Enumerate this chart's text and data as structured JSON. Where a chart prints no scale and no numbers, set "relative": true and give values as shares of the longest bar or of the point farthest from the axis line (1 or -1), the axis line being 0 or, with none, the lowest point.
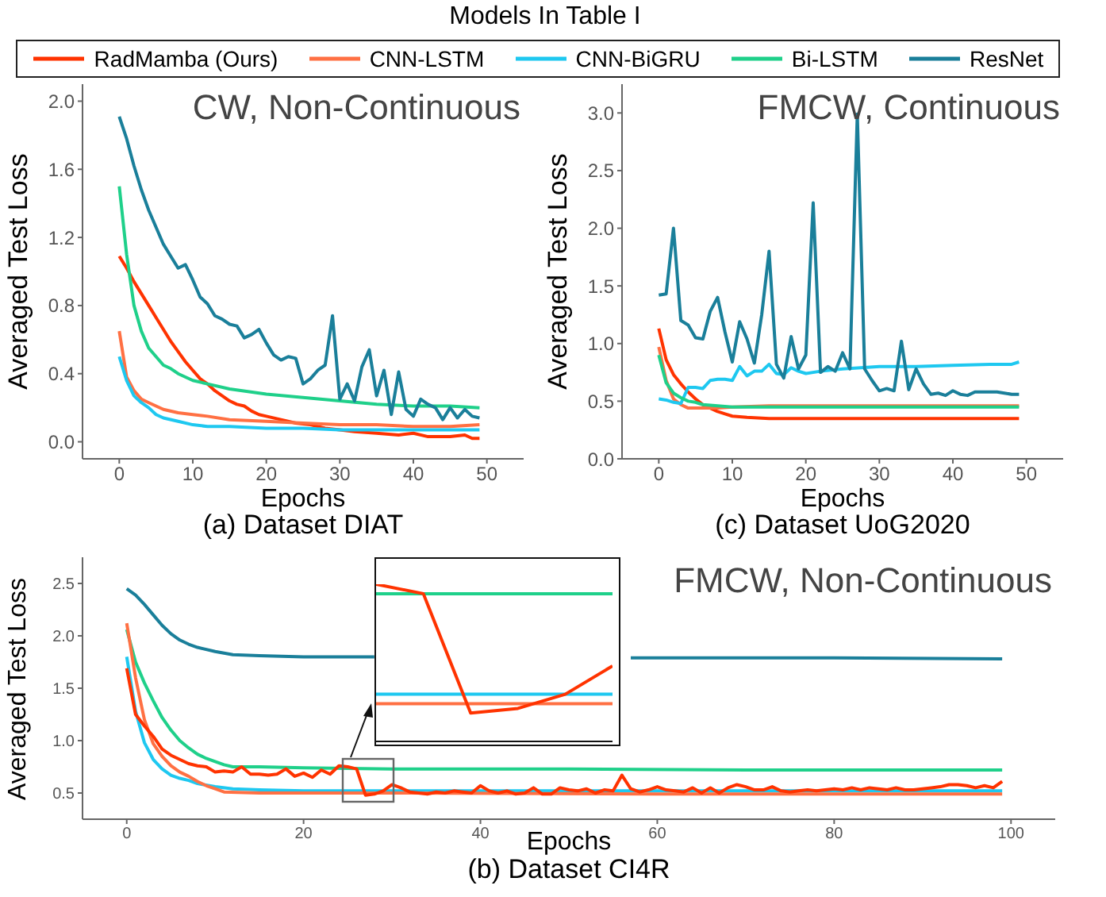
{
  "chart_data": [
    {
      "type": "line",
      "title": "(a) Dataset DIAT",
      "xlabel": "Epochs",
      "ylabel": "Averaged Test Loss",
      "legend_title": "Models In Table I",
      "legend": "top",
      "annotations": [
        "CW, Non-Continuous"
      ],
      "xlim": [
        -5,
        55
      ],
      "xticks": [
        0,
        10,
        20,
        30,
        40,
        50
      ],
      "ylim": [
        -0.1,
        2.1
      ],
      "yticks": [
        {
          "value": 0,
          "label": "0.0"
        },
        0.4,
        0.8,
        1.2,
        1.6,
        {
          "value": 2,
          "label": "2.0"
        }
      ],
      "series": [
        {
          "name": "RadMamba (Ours)",
          "color": "#ff3300",
          "x": [
            0,
            1,
            2,
            3,
            4,
            5,
            6,
            7,
            8,
            9,
            10,
            11,
            12,
            13,
            14,
            15,
            16,
            17,
            18,
            19,
            20,
            22,
            24,
            26,
            28,
            30,
            32,
            35,
            38,
            40,
            42,
            45,
            47,
            48,
            49
          ],
          "values": [
            1.09,
            1.02,
            0.94,
            0.87,
            0.8,
            0.73,
            0.66,
            0.59,
            0.53,
            0.47,
            0.42,
            0.37,
            0.34,
            0.3,
            0.27,
            0.24,
            0.22,
            0.21,
            0.18,
            0.16,
            0.15,
            0.13,
            0.11,
            0.1,
            0.08,
            0.07,
            0.06,
            0.05,
            0.04,
            0.05,
            0.03,
            0.03,
            0.04,
            0.02,
            0.02
          ]
        },
        {
          "name": "CNN-LSTM",
          "color": "#ff7043",
          "x": [
            0,
            1,
            2,
            3,
            4,
            5,
            6,
            8,
            10,
            12,
            15,
            20,
            25,
            30,
            35,
            40,
            45,
            49
          ],
          "values": [
            0.65,
            0.38,
            0.3,
            0.25,
            0.23,
            0.21,
            0.19,
            0.17,
            0.16,
            0.15,
            0.13,
            0.12,
            0.11,
            0.1,
            0.1,
            0.09,
            0.09,
            0.1
          ]
        },
        {
          "name": "CNN-BiGRU",
          "color": "#1ec8f0",
          "x": [
            0,
            1,
            2,
            3,
            4,
            5,
            6,
            8,
            10,
            12,
            15,
            20,
            25,
            30,
            35,
            40,
            45,
            49
          ],
          "values": [
            0.5,
            0.36,
            0.27,
            0.23,
            0.2,
            0.16,
            0.14,
            0.12,
            0.1,
            0.09,
            0.09,
            0.08,
            0.08,
            0.07,
            0.07,
            0.07,
            0.07,
            0.07
          ]
        },
        {
          "name": "Bi-LSTM",
          "color": "#1fd08a",
          "x": [
            0,
            1,
            2,
            3,
            4,
            5,
            6,
            7,
            8,
            9,
            10,
            12,
            15,
            20,
            25,
            30,
            35,
            40,
            45,
            49
          ],
          "values": [
            1.5,
            1.1,
            0.8,
            0.65,
            0.55,
            0.5,
            0.45,
            0.43,
            0.4,
            0.38,
            0.36,
            0.34,
            0.31,
            0.28,
            0.26,
            0.24,
            0.22,
            0.21,
            0.21,
            0.2
          ]
        },
        {
          "name": "ResNet",
          "color": "#1a7f9a",
          "x": [
            0,
            1,
            2,
            3,
            4,
            5,
            6,
            7,
            8,
            9,
            10,
            11,
            12,
            13,
            14,
            15,
            16,
            17,
            18,
            19,
            20,
            21,
            22,
            23,
            24,
            25,
            26,
            27,
            28,
            29,
            30,
            31,
            32,
            33,
            34,
            35,
            36,
            37,
            38,
            39,
            40,
            41,
            42,
            43,
            44,
            45,
            46,
            47,
            48,
            49
          ],
          "values": [
            1.91,
            1.78,
            1.62,
            1.48,
            1.36,
            1.26,
            1.16,
            1.09,
            1.02,
            1.04,
            0.95,
            0.85,
            0.81,
            0.74,
            0.72,
            0.69,
            0.68,
            0.61,
            0.63,
            0.66,
            0.58,
            0.51,
            0.48,
            0.5,
            0.49,
            0.34,
            0.37,
            0.42,
            0.45,
            0.74,
            0.25,
            0.34,
            0.24,
            0.44,
            0.54,
            0.27,
            0.42,
            0.16,
            0.41,
            0.19,
            0.15,
            0.25,
            0.22,
            0.2,
            0.13,
            0.2,
            0.14,
            0.19,
            0.15,
            0.14
          ]
        }
      ]
    },
    {
      "type": "line",
      "title": "(c) Dataset UoG2020",
      "xlabel": "Epochs",
      "ylabel": "Averaged Test Loss",
      "annotations": [
        "FMCW, Continuous"
      ],
      "xlim": [
        -5,
        55
      ],
      "xticks": [
        0,
        10,
        20,
        30,
        40,
        50
      ],
      "ylim": [
        0,
        3.25
      ],
      "yticks": [
        {
          "value": 0,
          "label": "0.0"
        },
        0.5,
        {
          "value": 1,
          "label": "1.0"
        },
        1.5,
        {
          "value": 2,
          "label": "2.0"
        },
        2.5,
        {
          "value": 3,
          "label": "3.0"
        }
      ],
      "series": [
        {
          "color": "#ff3300",
          "x": [
            0,
            1,
            2,
            3,
            4,
            5,
            6,
            7,
            8,
            9,
            10,
            12,
            15,
            20,
            30,
            40,
            49
          ],
          "values": [
            1.13,
            0.86,
            0.73,
            0.65,
            0.58,
            0.52,
            0.47,
            0.44,
            0.41,
            0.39,
            0.37,
            0.36,
            0.35,
            0.35,
            0.35,
            0.35,
            0.35
          ]
        },
        {
          "color": "#ff7043",
          "x": [
            0,
            1,
            2,
            3,
            4,
            6,
            8,
            10,
            15,
            20,
            30,
            40,
            49
          ],
          "values": [
            0.97,
            0.68,
            0.52,
            0.47,
            0.44,
            0.44,
            0.44,
            0.45,
            0.46,
            0.46,
            0.46,
            0.46,
            0.46
          ]
        },
        {
          "color": "#1ec8f0",
          "x": [
            0,
            1,
            2,
            3,
            4,
            5,
            6,
            7,
            8,
            9,
            10,
            11,
            12,
            13,
            14,
            15,
            16,
            17,
            18,
            19,
            20,
            22,
            25,
            30,
            35,
            40,
            45,
            48,
            49
          ],
          "values": [
            0.52,
            0.51,
            0.49,
            0.48,
            0.62,
            0.62,
            0.61,
            0.68,
            0.69,
            0.69,
            0.68,
            0.8,
            0.72,
            0.76,
            0.76,
            0.82,
            0.74,
            0.73,
            0.79,
            0.76,
            0.74,
            0.76,
            0.78,
            0.8,
            0.8,
            0.81,
            0.82,
            0.82,
            0.84
          ]
        },
        {
          "color": "#1fd08a",
          "x": [
            0,
            1,
            2,
            3,
            4,
            5,
            6,
            8,
            10,
            15,
            20,
            30,
            40,
            49
          ],
          "values": [
            0.9,
            0.66,
            0.57,
            0.53,
            0.5,
            0.49,
            0.47,
            0.46,
            0.45,
            0.45,
            0.45,
            0.45,
            0.45,
            0.45
          ]
        },
        {
          "color": "#1a7f9a",
          "x": [
            0,
            1,
            2,
            3,
            4,
            5,
            6,
            7,
            8,
            9,
            10,
            11,
            12,
            13,
            14,
            15,
            16,
            17,
            18,
            19,
            20,
            21,
            22,
            23,
            24,
            25,
            26,
            27,
            28,
            29,
            30,
            31,
            32,
            33,
            34,
            35,
            36,
            37,
            38,
            39,
            40,
            41,
            42,
            43,
            44,
            45,
            46,
            47,
            48,
            49
          ],
          "values": [
            1.42,
            1.43,
            2.0,
            1.2,
            1.16,
            1.05,
            1.04,
            1.28,
            1.4,
            1.1,
            0.84,
            1.19,
            1.04,
            0.83,
            1.25,
            1.8,
            0.82,
            0.7,
            1.06,
            0.78,
            0.9,
            2.22,
            0.75,
            0.8,
            0.76,
            0.92,
            0.78,
            2.99,
            0.78,
            0.68,
            0.59,
            0.61,
            0.59,
            1.02,
            0.6,
            0.78,
            0.65,
            0.56,
            0.57,
            0.55,
            0.59,
            0.56,
            0.55,
            0.58,
            0.58,
            0.58,
            0.58,
            0.57,
            0.56,
            0.56
          ]
        }
      ]
    },
    {
      "type": "line",
      "title": "(b) Dataset CI4R",
      "xlabel": "Epochs",
      "ylabel": "Averaged Test Loss",
      "annotations": [
        "FMCW, Non-Continuous"
      ],
      "xlim": [
        -5,
        105
      ],
      "xticks": [
        0,
        20,
        40,
        60,
        80,
        100
      ],
      "ylim": [
        0.25,
        2.75
      ],
      "yticks": [
        0.5,
        {
          "value": 1,
          "label": "1.0"
        },
        1.5,
        {
          "value": 2,
          "label": "2.0"
        },
        2.5
      ],
      "series": [
        {
          "color": "#1a7f9a",
          "x": [
            0,
            1,
            2,
            3,
            4,
            5,
            6,
            7,
            8,
            10,
            12,
            15,
            20,
            28,
            40,
            57,
            80,
            99
          ],
          "values": [
            2.45,
            2.39,
            2.3,
            2.2,
            2.1,
            2.02,
            1.96,
            1.92,
            1.89,
            1.85,
            1.82,
            1.81,
            1.8,
            1.8,
            null,
            1.79,
            1.79,
            1.78
          ]
        },
        {
          "color": "#1fd08a",
          "x": [
            0,
            1,
            2,
            3,
            4,
            5,
            6,
            7,
            8,
            9,
            10,
            11,
            12,
            15,
            20,
            30,
            50,
            70,
            99
          ],
          "values": [
            2.06,
            1.75,
            1.55,
            1.38,
            1.22,
            1.1,
            1.0,
            0.93,
            0.87,
            0.83,
            0.8,
            0.77,
            0.75,
            0.75,
            0.74,
            0.73,
            0.73,
            0.72,
            0.72
          ]
        },
        {
          "color": "#1ec8f0",
          "x": [
            0,
            1,
            2,
            3,
            4,
            5,
            6,
            7,
            8,
            10,
            12,
            15,
            20,
            40,
            60,
            80,
            99
          ],
          "values": [
            1.8,
            1.28,
            0.98,
            0.82,
            0.73,
            0.67,
            0.64,
            0.62,
            0.59,
            0.56,
            0.54,
            0.53,
            0.52,
            0.52,
            0.52,
            0.52,
            0.52
          ]
        },
        {
          "color": "#ff7043",
          "x": [
            0,
            1,
            2,
            3,
            4,
            5,
            6,
            7,
            8,
            9,
            10,
            11,
            15,
            30,
            60,
            99
          ],
          "values": [
            2.12,
            1.6,
            1.2,
            0.97,
            0.85,
            0.76,
            0.7,
            0.66,
            0.61,
            0.57,
            0.54,
            0.51,
            0.5,
            0.5,
            0.49,
            0.49
          ]
        },
        {
          "color": "#ff3300",
          "x": [
            0,
            1,
            2,
            3,
            4,
            5,
            6,
            7,
            8,
            9,
            10,
            11,
            12,
            13,
            14,
            15,
            16,
            17,
            18,
            19,
            20,
            21,
            22,
            23,
            24,
            25,
            26,
            27,
            28,
            29,
            30,
            31,
            32,
            33,
            34,
            35,
            36,
            37,
            38,
            39,
            40,
            41,
            42,
            43,
            44,
            45,
            46,
            47,
            48,
            49,
            50,
            51,
            52,
            53,
            54,
            55,
            56,
            57,
            58,
            59,
            60,
            61,
            62,
            63,
            64,
            65,
            66,
            67,
            68,
            69,
            70,
            71,
            72,
            73,
            74,
            75,
            76,
            77,
            78,
            79,
            80,
            81,
            82,
            83,
            84,
            85,
            86,
            87,
            88,
            89,
            90,
            91,
            92,
            93,
            94,
            95,
            96,
            97,
            98,
            99
          ],
          "values": [
            1.69,
            1.25,
            1.14,
            1.04,
            0.92,
            0.86,
            0.82,
            0.78,
            0.76,
            0.75,
            0.7,
            0.71,
            0.7,
            0.75,
            0.68,
            0.68,
            0.67,
            0.68,
            0.73,
            0.66,
            0.69,
            0.65,
            0.72,
            0.68,
            0.76,
            0.75,
            0.73,
            0.48,
            0.49,
            0.52,
            0.58,
            0.55,
            0.51,
            0.5,
            0.49,
            0.51,
            0.5,
            0.52,
            0.51,
            0.5,
            0.57,
            0.52,
            0.5,
            0.52,
            0.49,
            0.5,
            0.55,
            0.49,
            0.49,
            0.55,
            0.53,
            0.52,
            0.54,
            0.5,
            0.53,
            0.52,
            0.67,
            0.54,
            0.51,
            0.53,
            0.56,
            0.53,
            0.52,
            0.51,
            0.55,
            0.5,
            0.55,
            0.5,
            0.55,
            0.58,
            0.56,
            0.53,
            0.53,
            0.56,
            0.52,
            0.51,
            0.52,
            0.53,
            0.52,
            0.53,
            0.54,
            0.53,
            0.55,
            0.53,
            0.55,
            0.54,
            0.53,
            0.55,
            0.53,
            0.53,
            0.54,
            0.55,
            0.56,
            0.58,
            0.58,
            0.57,
            0.55,
            0.57,
            0.55,
            0.61
          ]
        }
      ]
    },
    {
      "type": "line",
      "relative": true,
      "categories": [
        null,
        null,
        null,
        null,
        null,
        null
      ],
      "series": [
        {
          "color": "#1fd08a",
          "values": [
            0.94,
            0.94,
            0.94,
            0.94,
            0.94,
            0.94
          ]
        },
        {
          "color": "#1ec8f0",
          "values": [
            0.3,
            0.3,
            0.3,
            0.3,
            0.3,
            0.3
          ]
        },
        {
          "color": "#ff7043",
          "values": [
            0.24,
            0.24,
            0.24,
            0.24,
            0.24,
            0.24
          ]
        },
        {
          "color": "#ff3300",
          "values": [
            1,
            0.94,
            0.18,
            0.21,
            0.3,
            0.48
          ]
        }
      ]
    }
  ]
}
